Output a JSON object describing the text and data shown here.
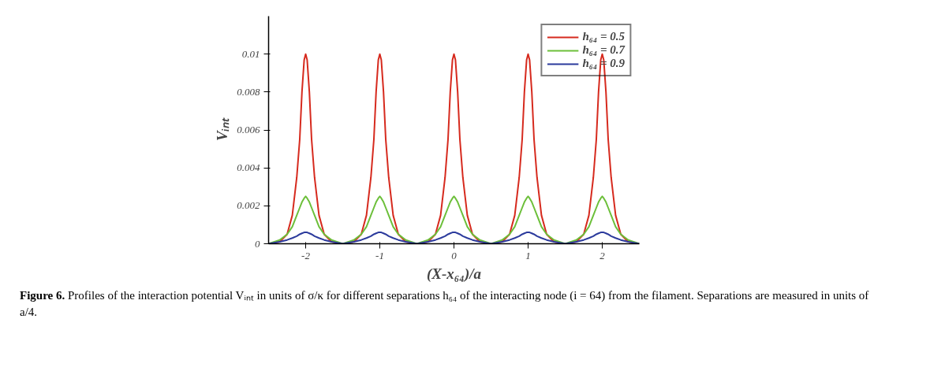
{
  "chart_data": {
    "type": "line",
    "xlabel": "(X-x₆₄)/a",
    "ylabel": "Vᵢₙₜ",
    "x": [
      -2.5,
      -2.35,
      -2.25,
      -2.18,
      -2.12,
      -2.08,
      -2.05,
      -2.02,
      -2,
      -1.98,
      -1.95,
      -1.92,
      -1.88,
      -1.82,
      -1.75,
      -1.65,
      -1.5,
      -1.35,
      -1.25,
      -1.18,
      -1.12,
      -1.08,
      -1.05,
      -1.02,
      -1,
      -0.98,
      -0.95,
      -0.92,
      -0.88,
      -0.82,
      -0.75,
      -0.65,
      -0.5,
      -0.35,
      -0.25,
      -0.18,
      -0.12,
      -0.08,
      -0.05,
      -0.02,
      0,
      0.02,
      0.05,
      0.08,
      0.12,
      0.18,
      0.25,
      0.35,
      0.5,
      0.65,
      0.75,
      0.82,
      0.88,
      0.92,
      0.95,
      0.98,
      1,
      1.02,
      1.05,
      1.08,
      1.12,
      1.18,
      1.25,
      1.35,
      1.5,
      1.65,
      1.75,
      1.82,
      1.88,
      1.92,
      1.95,
      1.98,
      2,
      2.02,
      2.05,
      2.08,
      2.12,
      2.18,
      2.25,
      2.35,
      2.5
    ],
    "series": [
      {
        "name": "h₆₄ = 0.5",
        "color": "#d62a1e",
        "values": [
          0,
          0.0001,
          0.0005,
          0.0015,
          0.0035,
          0.0055,
          0.008,
          0.0097,
          0.01,
          0.0097,
          0.008,
          0.0055,
          0.0035,
          0.0015,
          0.0005,
          0.0001,
          0,
          0.0001,
          0.0005,
          0.0015,
          0.0035,
          0.0055,
          0.008,
          0.0097,
          0.01,
          0.0097,
          0.008,
          0.0055,
          0.0035,
          0.0015,
          0.0005,
          0.0001,
          0,
          0.0001,
          0.0005,
          0.0015,
          0.0035,
          0.0055,
          0.008,
          0.0097,
          0.01,
          0.0097,
          0.008,
          0.0055,
          0.0035,
          0.0015,
          0.0005,
          0.0001,
          0,
          0.0001,
          0.0005,
          0.0015,
          0.0035,
          0.0055,
          0.008,
          0.0097,
          0.01,
          0.0097,
          0.008,
          0.0055,
          0.0035,
          0.0015,
          0.0005,
          0.0001,
          0,
          0.0001,
          0.0005,
          0.0015,
          0.0035,
          0.0055,
          0.008,
          0.0097,
          0.01,
          0.0097,
          0.008,
          0.0055,
          0.0035,
          0.0015,
          0.0005,
          0.0001,
          0
        ]
      },
      {
        "name": "h₆₄ = 0.7",
        "color": "#6cbf3a",
        "values": [
          0,
          0.0002,
          0.0005,
          0.0009,
          0.0015,
          0.0019,
          0.0022,
          0.0024,
          0.0025,
          0.0024,
          0.0022,
          0.0019,
          0.0015,
          0.0009,
          0.0005,
          0.0002,
          0,
          0.0002,
          0.0005,
          0.0009,
          0.0015,
          0.0019,
          0.0022,
          0.0024,
          0.0025,
          0.0024,
          0.0022,
          0.0019,
          0.0015,
          0.0009,
          0.0005,
          0.0002,
          0,
          0.0002,
          0.0005,
          0.0009,
          0.0015,
          0.0019,
          0.0022,
          0.0024,
          0.0025,
          0.0024,
          0.0022,
          0.0019,
          0.0015,
          0.0009,
          0.0005,
          0.0002,
          0,
          0.0002,
          0.0005,
          0.0009,
          0.0015,
          0.0019,
          0.0022,
          0.0024,
          0.0025,
          0.0024,
          0.0022,
          0.0019,
          0.0015,
          0.0009,
          0.0005,
          0.0002,
          0,
          0.0002,
          0.0005,
          0.0009,
          0.0015,
          0.0019,
          0.0022,
          0.0024,
          0.0025,
          0.0024,
          0.0022,
          0.0019,
          0.0015,
          0.0009,
          0.0005,
          0.0002,
          0
        ]
      },
      {
        "name": "h₆₄ = 0.9",
        "color": "#2b3a9c",
        "values": [
          0,
          0.0001,
          0.0002,
          0.0003,
          0.0004,
          0.0005,
          0.00055,
          0.0006,
          0.0006,
          0.0006,
          0.00055,
          0.0005,
          0.0004,
          0.0003,
          0.0002,
          0.0001,
          0,
          0.0001,
          0.0002,
          0.0003,
          0.0004,
          0.0005,
          0.00055,
          0.0006,
          0.0006,
          0.0006,
          0.00055,
          0.0005,
          0.0004,
          0.0003,
          0.0002,
          0.0001,
          0,
          0.0001,
          0.0002,
          0.0003,
          0.0004,
          0.0005,
          0.00055,
          0.0006,
          0.0006,
          0.0006,
          0.00055,
          0.0005,
          0.0004,
          0.0003,
          0.0002,
          0.0001,
          0,
          0.0001,
          0.0002,
          0.0003,
          0.0004,
          0.0005,
          0.00055,
          0.0006,
          0.0006,
          0.0006,
          0.00055,
          0.0005,
          0.0004,
          0.0003,
          0.0002,
          0.0001,
          0,
          0.0001,
          0.0002,
          0.0003,
          0.0004,
          0.0005,
          0.00055,
          0.0006,
          0.0006,
          0.0006,
          0.00055,
          0.0005,
          0.0004,
          0.0003,
          0.0002,
          0.0001,
          0
        ]
      }
    ],
    "xlim": [
      -2.5,
      2.5
    ],
    "xticks": [
      -2,
      -1,
      0,
      1,
      2
    ],
    "ylim": [
      0,
      0.012
    ],
    "yticks": [
      0,
      0.002,
      0.004,
      0.006,
      0.008,
      0.01
    ],
    "grid": false,
    "legend": "top right",
    "marker": "none",
    "line_style": "solid",
    "annotations": [
      "Figure 6. Profiles of the interaction potential Vᵢₙₜ in units of σ/κ for different separations h₆₄ of the interacting node (i = 64) from the filament. Separations are measured in units of a/4."
    ]
  }
}
